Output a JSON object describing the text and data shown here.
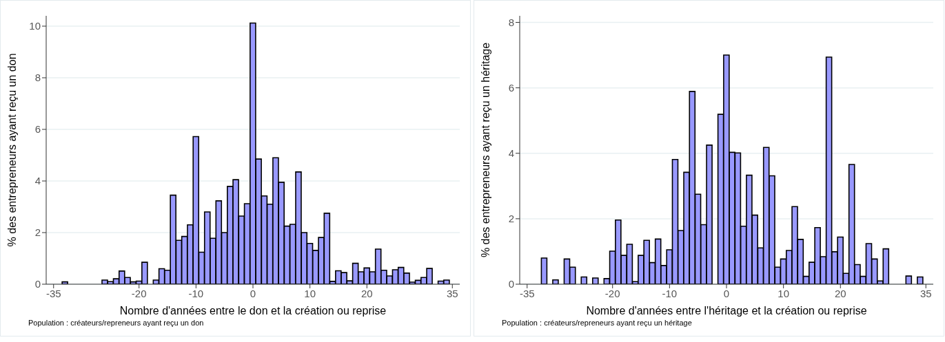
{
  "chart_data": [
    {
      "type": "histogram",
      "xlabel": "Nombre d'années entre le don et la création ou reprise",
      "ylabel": "% des entrepreneurs ayant reçu un don",
      "annotations": [
        "Population : créateurs/repreneurs ayant reçu un don"
      ],
      "color": "#9999ff",
      "grid": "y",
      "xlim": [
        -36.3,
        36.3
      ],
      "xticks": [
        -35,
        -20,
        -10,
        0,
        10,
        20,
        35
      ],
      "ylim": [
        0,
        10.4
      ],
      "yticks": [
        0,
        2,
        4,
        6,
        8,
        10
      ],
      "bins": [
        -33.5,
        -32.5,
        -31.5,
        -30.5,
        -29.5,
        -28.5,
        -27.5,
        -26.5,
        -25.5,
        -24.5,
        -23.5,
        -22.5,
        -21.5,
        -20.5,
        -19.5,
        -18.5,
        -17.5,
        -16.5,
        -15.5,
        -14.5,
        -13.5,
        -12.5,
        -11.5,
        -10.5,
        -9.5,
        -8.5,
        -7.5,
        -6.5,
        -5.5,
        -4.5,
        -3.5,
        -2.5,
        -1.5,
        -0.5,
        0.5,
        1.5,
        2.5,
        3.5,
        4.5,
        5.5,
        6.5,
        7.5,
        8.5,
        9.5,
        10.5,
        11.5,
        12.5,
        13.5,
        14.5,
        15.5,
        16.5,
        17.5,
        18.5,
        19.5,
        20.5,
        21.5,
        22.5,
        23.5,
        24.5,
        25.5,
        26.5,
        27.5,
        28.5,
        29.5,
        30.5,
        31.5,
        32.5,
        33.5,
        34.5
      ],
      "values": [
        0.09,
        0,
        0,
        0,
        0,
        0,
        0,
        0.16,
        0.1,
        0.21,
        0.51,
        0.26,
        0.09,
        0.12,
        0.85,
        0,
        0.16,
        0.6,
        0.54,
        3.45,
        1.7,
        1.85,
        2.3,
        5.72,
        1.24,
        2.8,
        1.78,
        3.23,
        2.0,
        3.79,
        4.05,
        2.64,
        3.12,
        10.12,
        4.85,
        3.42,
        3.1,
        4.9,
        3.95,
        2.25,
        2.32,
        4.35,
        2.0,
        1.58,
        1.31,
        1.81,
        2.75,
        0.11,
        0.52,
        0.45,
        0.13,
        0.81,
        0.48,
        0.63,
        0.48,
        1.36,
        0.54,
        0.32,
        0.56,
        0.65,
        0.43,
        0.08,
        0.15,
        0.26,
        0.61,
        0,
        0.12,
        0.16
      ]
    },
    {
      "type": "histogram",
      "xlabel": "Nombre d'années entre l'héritage et la création ou reprise",
      "ylabel": "% des entrepreneurs ayant reçu un héritage",
      "annotations": [
        "Population : créateurs/repreneurs ayant reçu un héritage"
      ],
      "color": "#9999ff",
      "grid": "y",
      "xlim": [
        -36.3,
        36.3
      ],
      "xticks": [
        -35,
        -20,
        -10,
        0,
        10,
        20,
        35
      ],
      "ylim": [
        0,
        8.2
      ],
      "yticks": [
        0,
        2,
        4,
        6,
        8
      ],
      "bins": [
        -32.5,
        -31.5,
        -30.5,
        -29.5,
        -28.5,
        -27.5,
        -26.5,
        -25.5,
        -24.5,
        -23.5,
        -22.5,
        -21.5,
        -20.5,
        -19.5,
        -18.5,
        -17.5,
        -16.5,
        -15.5,
        -14.5,
        -13.5,
        -12.5,
        -11.5,
        -10.5,
        -9.5,
        -8.5,
        -7.5,
        -6.5,
        -5.5,
        -4.5,
        -3.5,
        -2.5,
        -1.5,
        -0.5,
        0.5,
        1.5,
        2.5,
        3.5,
        4.5,
        5.5,
        6.5,
        7.5,
        8.5,
        9.5,
        10.5,
        11.5,
        12.5,
        13.5,
        14.5,
        15.5,
        16.5,
        17.5,
        18.5,
        19.5,
        20.5,
        21.5,
        22.5,
        23.5,
        24.5,
        25.5,
        26.5,
        27.5,
        28.5,
        29.5,
        30.5,
        31.5,
        32.5,
        33.5,
        34.5
      ],
      "values": [
        0.8,
        0,
        0.13,
        0,
        0.77,
        0.52,
        0,
        0.22,
        0,
        0.19,
        0,
        0.17,
        1.01,
        1.96,
        0.88,
        1.22,
        0.08,
        0.88,
        1.34,
        0.66,
        1.38,
        0.57,
        1.05,
        3.81,
        1.64,
        3.42,
        5.89,
        2.75,
        1.82,
        4.25,
        0,
        5.19,
        7.0,
        4.03,
        4.01,
        1.77,
        3.33,
        2.11,
        1.11,
        4.18,
        3.31,
        0.52,
        0.77,
        1.03,
        2.37,
        1.37,
        0.24,
        0.67,
        1.73,
        0.84,
        6.94,
        0.99,
        1.44,
        0.33,
        3.66,
        0.6,
        0.24,
        1.24,
        0.77,
        0.1,
        1.08,
        0,
        0,
        0,
        0.25,
        0,
        0.22
      ]
    }
  ]
}
